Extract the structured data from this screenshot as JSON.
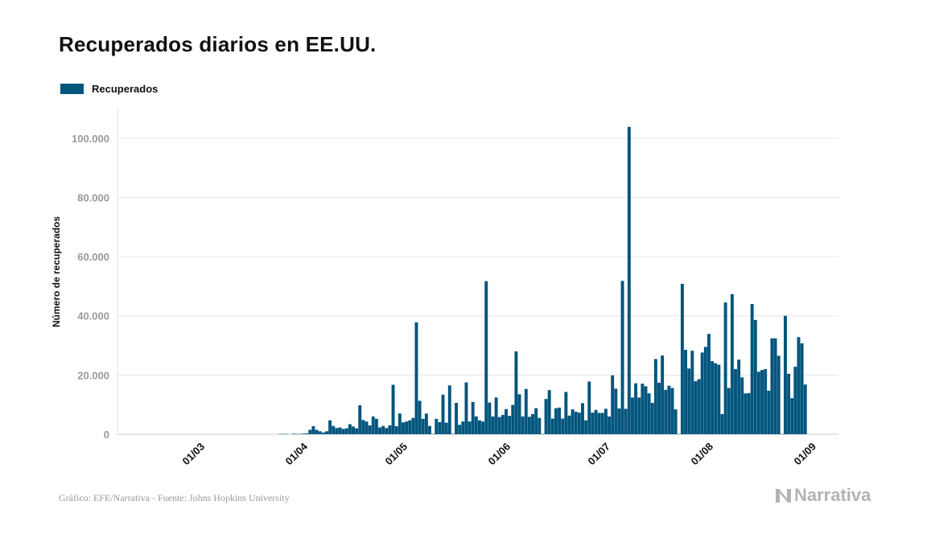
{
  "title": "Recuperados diarios en EE.UU.",
  "source": "Gráfico: EFE/Narrativa - Fuente: Johns Hopkins University",
  "brand": {
    "name": "Narrativa",
    "icon": "narrativa-logo-icon"
  },
  "colors": {
    "bar": "#02557d",
    "grid": "#e6e6e6",
    "tick": "#999999",
    "text": "#111111"
  },
  "chart_data": {
    "type": "bar",
    "title": "Recuperados diarios en EE.UU.",
    "ylabel": "Número de recuperados",
    "xlabel": "",
    "legend": {
      "entries": [
        "Recuperados"
      ],
      "position": "top-left"
    },
    "grid": true,
    "ylim": [
      0,
      110000
    ],
    "yticks": [
      {
        "value": 0,
        "label": "0"
      },
      {
        "value": 20000,
        "label": "20.000"
      },
      {
        "value": 40000,
        "label": "40.000"
      },
      {
        "value": 60000,
        "label": "60.000"
      },
      {
        "value": 80000,
        "label": "80.000"
      },
      {
        "value": 100000,
        "label": "100.000"
      }
    ],
    "x_start": "2020-02-01",
    "xticks": [
      {
        "date": "2020-03-01",
        "label": "01/03"
      },
      {
        "date": "2020-04-01",
        "label": "01/04"
      },
      {
        "date": "2020-05-01",
        "label": "01/05"
      },
      {
        "date": "2020-06-01",
        "label": "01/06"
      },
      {
        "date": "2020-07-01",
        "label": "01/07"
      },
      {
        "date": "2020-08-01",
        "label": "01/08"
      },
      {
        "date": "2020-09-01",
        "label": "01/09"
      }
    ],
    "series": [
      {
        "name": "Recuperados",
        "values": [
          0,
          0,
          0,
          0,
          0,
          0,
          0,
          0,
          0,
          0,
          0,
          0,
          0,
          0,
          0,
          0,
          0,
          0,
          0,
          0,
          0,
          0,
          0,
          0,
          0,
          0,
          0,
          0,
          0,
          0,
          0,
          0,
          0,
          0,
          0,
          0,
          0,
          0,
          0,
          0,
          0,
          0,
          0,
          0,
          0,
          0,
          0,
          0,
          0,
          0,
          0,
          0,
          0,
          100,
          100,
          100,
          0,
          200,
          100,
          100,
          200,
          300,
          1500,
          2700,
          1500,
          1000,
          600,
          1000,
          4700,
          2800,
          2100,
          2300,
          1800,
          2000,
          3400,
          2600,
          2000,
          9800,
          4800,
          4300,
          3000,
          6000,
          5200,
          2300,
          2800,
          2100,
          3000,
          16700,
          2700,
          7000,
          4000,
          4300,
          4700,
          5500,
          37800,
          11300,
          5200,
          7000,
          2800,
          100,
          5200,
          4100,
          13400,
          3900,
          16500,
          100,
          10600,
          3200,
          4300,
          17500,
          4300,
          10900,
          6000,
          4700,
          4300,
          51700,
          10700,
          6000,
          12400,
          5800,
          6500,
          8500,
          6200,
          9900,
          28000,
          13500,
          6000,
          15300,
          5900,
          6800,
          8800,
          5500,
          100,
          11900,
          14900,
          5300,
          8800,
          9000,
          5300,
          14300,
          6300,
          8400,
          7600,
          7300,
          10500,
          4700,
          17800,
          7300,
          8200,
          7200,
          7200,
          8600,
          6000,
          19900,
          15400,
          8700,
          51800,
          8600,
          103800,
          12400,
          17200,
          12400,
          17100,
          16200,
          13800,
          10600,
          25400,
          17400,
          26600,
          15000,
          16400,
          15600,
          8400,
          100,
          50800,
          28500,
          22200,
          28200,
          17900,
          18600,
          27600,
          29500,
          33900,
          24700,
          24000,
          23500,
          6800,
          44500,
          15600,
          47300,
          22000,
          25200,
          19200,
          13800,
          13900,
          44000,
          38600,
          21100,
          21700,
          22000,
          14700,
          32400,
          32400,
          26500,
          100,
          40000,
          20400,
          12200,
          22800,
          32800,
          30700,
          16800
        ]
      }
    ]
  }
}
